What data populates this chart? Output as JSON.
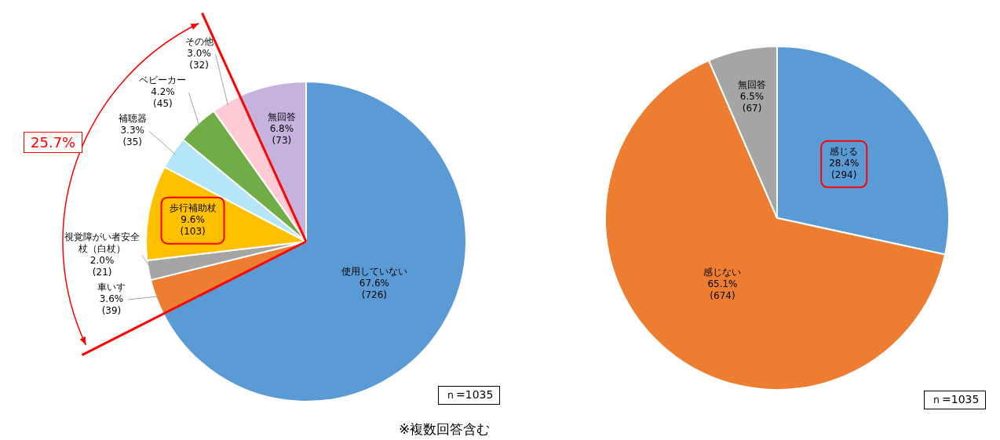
{
  "chart_data": [
    {
      "type": "pie",
      "categories": [
        "使用していない",
        "車いす",
        "視覚障がい者安全杖（白杖）",
        "歩行補助杖",
        "補聴器",
        "ベビーカー",
        "その他",
        "無回答"
      ],
      "values": [
        67.6,
        3.6,
        2.0,
        9.6,
        3.3,
        4.2,
        3.0,
        6.8
      ],
      "value_labels": [
        "67.6%\n(726)",
        "3.6%\n(39)",
        "2.0%\n(21)",
        "9.6%\n(103)",
        "3.3%\n(35)",
        "4.2%\n(45)",
        "3.0%\n(32)",
        "6.8%\n(73)"
      ],
      "colors": [
        "#5b9bd5",
        "#ed7d31",
        "#a5a5a5",
        "#ffc000",
        "#b4e6f7",
        "#70ad47",
        "#ffccd5",
        "#c5b3de"
      ],
      "legend": false,
      "annotations": [
        "25.7%",
        "ｎ=1035",
        "※複数回答含む"
      ]
    },
    {
      "type": "pie",
      "categories": [
        "感じる",
        "感じない",
        "無回答"
      ],
      "values": [
        28.4,
        65.1,
        6.5
      ],
      "value_labels": [
        "28.4%\n(294)",
        "65.1%\n(674)",
        "6.5%\n(67)"
      ],
      "colors": [
        "#5b9bd5",
        "#ed7d31",
        "#a5a5a5"
      ],
      "legend": false,
      "annotations": [
        "ｎ=1035"
      ]
    }
  ]
}
